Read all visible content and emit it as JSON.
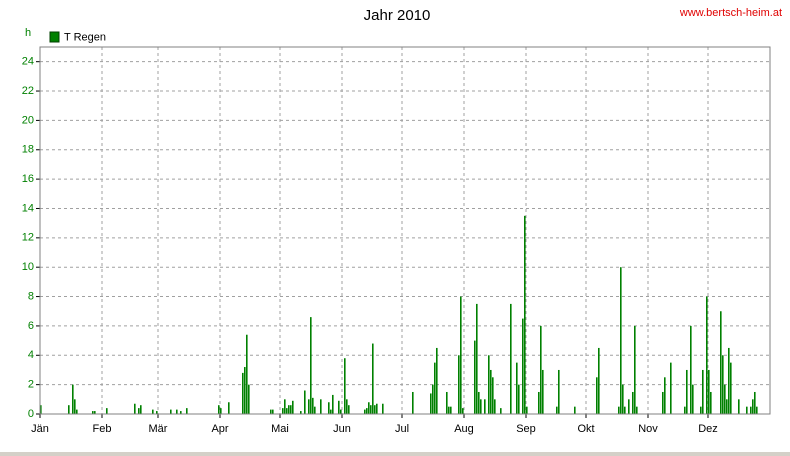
{
  "chart_data": {
    "type": "bar",
    "title": "Jahr 2010",
    "source": "www.bertsch-heim.at",
    "y_label": "h",
    "series": [
      {
        "name": "T Regen",
        "color": "#008000",
        "x": [
          0,
          14,
          16,
          17,
          18,
          26,
          27,
          33,
          47,
          49,
          50,
          56,
          58,
          65,
          68,
          70,
          73,
          89,
          90,
          94,
          101,
          102,
          103,
          104,
          115,
          116,
          121,
          122,
          123,
          124,
          125,
          126,
          130,
          132,
          134,
          135,
          136,
          137,
          140,
          144,
          145,
          146,
          149,
          150,
          152,
          153,
          154,
          162,
          163,
          164,
          165,
          166,
          167,
          168,
          171,
          186,
          195,
          196,
          197,
          198,
          203,
          204,
          205,
          209,
          210,
          211,
          217,
          218,
          219,
          220,
          222,
          224,
          225,
          226,
          227,
          230,
          235,
          238,
          239,
          241,
          242,
          243,
          249,
          250,
          251,
          258,
          259,
          267,
          278,
          279,
          289,
          290,
          291,
          292,
          294,
          296,
          297,
          298,
          311,
          312,
          315,
          322,
          323,
          325,
          326,
          330,
          331,
          333,
          334,
          335,
          340,
          341,
          342,
          343,
          344,
          345,
          349,
          353,
          355,
          356,
          357,
          358
        ],
        "values": [
          0.6,
          0.6,
          2.0,
          1.0,
          0.3,
          0.2,
          0.2,
          0.4,
          0.7,
          0.4,
          0.6,
          0.3,
          0.2,
          0.3,
          0.3,
          0.2,
          0.4,
          0.6,
          0.4,
          0.8,
          2.8,
          3.2,
          5.4,
          2.0,
          0.3,
          0.3,
          0.4,
          1.0,
          0.4,
          0.6,
          0.6,
          0.9,
          0.2,
          1.6,
          1.0,
          6.6,
          1.1,
          0.5,
          1.0,
          0.8,
          0.3,
          1.3,
          0.9,
          0.3,
          3.8,
          1.0,
          0.6,
          0.3,
          0.4,
          0.8,
          0.6,
          4.8,
          0.6,
          0.7,
          0.7,
          1.5,
          1.4,
          2.0,
          3.5,
          4.5,
          1.5,
          0.5,
          0.5,
          4.0,
          8.0,
          0.4,
          5.0,
          7.5,
          1.5,
          1.0,
          1.0,
          4.0,
          3.0,
          2.5,
          1.0,
          0.4,
          7.5,
          3.5,
          2.0,
          6.5,
          13.5,
          0.5,
          1.5,
          6.0,
          3.0,
          0.5,
          3.0,
          0.5,
          2.5,
          4.5,
          0.5,
          10.0,
          2.0,
          0.5,
          1.0,
          1.5,
          6.0,
          0.5,
          1.5,
          2.5,
          3.5,
          0.5,
          3.0,
          6.0,
          2.0,
          0.5,
          3.0,
          8.0,
          3.0,
          1.5,
          7.0,
          4.0,
          2.0,
          1.0,
          4.5,
          3.5,
          1.0,
          0.5,
          0.5,
          1.0,
          1.5,
          0.5
        ]
      }
    ],
    "xlim": [
      0,
      365
    ],
    "xticks": [
      {
        "value": 0,
        "label": "Jän"
      },
      {
        "value": 31,
        "label": "Feb"
      },
      {
        "value": 59,
        "label": "Mär"
      },
      {
        "value": 90,
        "label": "Apr"
      },
      {
        "value": 120,
        "label": "Mai"
      },
      {
        "value": 151,
        "label": "Jun"
      },
      {
        "value": 181,
        "label": "Jul"
      },
      {
        "value": 212,
        "label": "Aug"
      },
      {
        "value": 243,
        "label": "Sep"
      },
      {
        "value": 273,
        "label": "Okt"
      },
      {
        "value": 304,
        "label": "Nov"
      },
      {
        "value": 334,
        "label": "Dez"
      }
    ],
    "ylim": [
      0,
      25
    ],
    "yticks": [
      0,
      2,
      4,
      6,
      8,
      10,
      12,
      14,
      16,
      18,
      20,
      22,
      24
    ],
    "grid": true
  }
}
